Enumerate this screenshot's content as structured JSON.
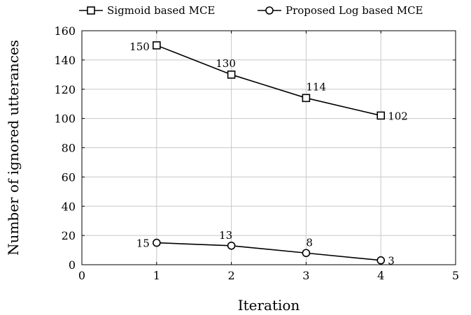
{
  "chart_data": {
    "type": "line",
    "xlabel": "Iteration",
    "ylabel": "Number of ignored utterances",
    "xlim": [
      0,
      5
    ],
    "ylim": [
      0,
      160
    ],
    "x_ticks": [
      "0",
      "1",
      "2",
      "3",
      "4",
      "5"
    ],
    "y_ticks": [
      "0",
      "20",
      "40",
      "60",
      "80",
      "100",
      "120",
      "140",
      "160"
    ],
    "grid": true,
    "legend_position": "top",
    "x": [
      1,
      2,
      3,
      4
    ],
    "series": [
      {
        "name": "Sigmoid based MCE",
        "marker": "square",
        "color": "#000000",
        "values": [
          150,
          130,
          114,
          102
        ],
        "labels": [
          "150",
          "130",
          "114",
          "102"
        ]
      },
      {
        "name": "Proposed Log based MCE",
        "marker": "circle",
        "color": "#000000",
        "values": [
          15,
          13,
          8,
          3
        ],
        "labels": [
          "15",
          "13",
          "8",
          "3"
        ]
      }
    ]
  }
}
